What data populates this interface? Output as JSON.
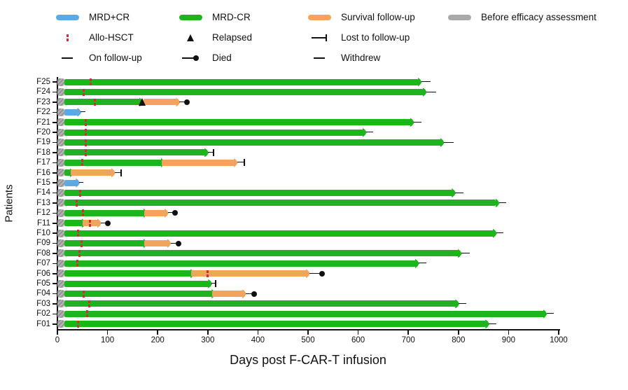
{
  "colors": {
    "mrd_pos_cr": "#5FA9E3",
    "mrd_neg_cr": "#1EB41E",
    "survival_follow_up": "#F2A45C",
    "before_efficacy_assessment": "#A9A9A9",
    "allo_hsct": "#D12E3C",
    "marker_black": "#111111"
  },
  "legend": {
    "items": [
      {
        "id": "mrd-pos-cr",
        "label": "MRD+CR",
        "marker": "bar-blue",
        "row": 1,
        "col": 1
      },
      {
        "id": "mrd-neg-cr",
        "label": "MRD-CR",
        "marker": "bar-green",
        "row": 1,
        "col": 2
      },
      {
        "id": "survival-follow-up",
        "label": "Survival follow-up",
        "marker": "bar-orange",
        "row": 1,
        "col": 3
      },
      {
        "id": "before-efficacy-assessment",
        "label": "Before efficacy assessment",
        "marker": "bar-gray",
        "row": 1,
        "col": 4
      },
      {
        "id": "allo-hsct",
        "label": "Allo-HSCT",
        "marker": "allo",
        "row": 2,
        "col": 1
      },
      {
        "id": "relapsed",
        "label": "Relapsed",
        "marker": "triangle",
        "row": 2,
        "col": 2
      },
      {
        "id": "lost-to-follow-up",
        "label": "Lost to follow-up",
        "marker": "lost",
        "row": 2,
        "col": 3
      },
      {
        "id": "on-follow-up",
        "label": "On follow-up",
        "marker": "line",
        "row": 3,
        "col": 1
      },
      {
        "id": "died",
        "label": "Died",
        "marker": "died",
        "row": 3,
        "col": 2
      },
      {
        "id": "withdrew",
        "label": "Withdrew",
        "marker": "line",
        "row": 3,
        "col": 3
      }
    ]
  },
  "chart_data": {
    "type": "swimmer",
    "xlabel": "Days post F-CAR-T infusion",
    "ylabel": "Patients",
    "xlim": [
      0,
      1000
    ],
    "x_ticks": [
      0,
      100,
      200,
      300,
      400,
      500,
      600,
      700,
      800,
      900,
      1000
    ],
    "grid": false,
    "segment_legend": {
      "before": "Before efficacy assessment",
      "blue": "MRD+CR",
      "green": "MRD-CR",
      "orange": "Survival follow-up"
    },
    "patients": [
      {
        "id": "F25",
        "segments": [
          {
            "type": "before",
            "start": 0,
            "end": 14
          },
          {
            "type": "green",
            "start": 14,
            "end": 720
          }
        ],
        "events": [
          {
            "type": "allo_hsct",
            "day": 67
          }
        ],
        "terminal": {
          "type": "on_follow_up",
          "day": 745
        }
      },
      {
        "id": "F24",
        "segments": [
          {
            "type": "before",
            "start": 0,
            "end": 14
          },
          {
            "type": "green",
            "start": 14,
            "end": 730
          }
        ],
        "events": [
          {
            "type": "allo_hsct",
            "day": 53
          }
        ],
        "terminal": {
          "type": "on_follow_up",
          "day": 755
        }
      },
      {
        "id": "F23",
        "segments": [
          {
            "type": "before",
            "start": 0,
            "end": 14
          },
          {
            "type": "green",
            "start": 14,
            "end": 165
          },
          {
            "type": "orange",
            "start": 172,
            "end": 238
          }
        ],
        "events": [
          {
            "type": "allo_hsct",
            "day": 75
          },
          {
            "type": "relapsed",
            "day": 169
          }
        ],
        "terminal": {
          "type": "died",
          "day": 258
        }
      },
      {
        "id": "F22",
        "segments": [
          {
            "type": "before",
            "start": 0,
            "end": 14
          },
          {
            "type": "blue",
            "start": 14,
            "end": 41
          }
        ],
        "events": [],
        "terminal": {
          "type": "withdrew",
          "day": 56
        }
      },
      {
        "id": "F21",
        "segments": [
          {
            "type": "before",
            "start": 0,
            "end": 14
          },
          {
            "type": "green",
            "start": 14,
            "end": 705
          }
        ],
        "events": [
          {
            "type": "allo_hsct",
            "day": 56
          }
        ],
        "terminal": {
          "type": "on_follow_up",
          "day": 726
        }
      },
      {
        "id": "F20",
        "segments": [
          {
            "type": "before",
            "start": 0,
            "end": 14
          },
          {
            "type": "green",
            "start": 14,
            "end": 610
          }
        ],
        "events": [
          {
            "type": "allo_hsct",
            "day": 56
          }
        ],
        "terminal": {
          "type": "on_follow_up",
          "day": 630
        }
      },
      {
        "id": "F19",
        "segments": [
          {
            "type": "before",
            "start": 0,
            "end": 14
          },
          {
            "type": "green",
            "start": 14,
            "end": 765
          }
        ],
        "events": [
          {
            "type": "allo_hsct",
            "day": 56
          }
        ],
        "terminal": {
          "type": "on_follow_up",
          "day": 790
        }
      },
      {
        "id": "F18",
        "segments": [
          {
            "type": "before",
            "start": 0,
            "end": 14
          },
          {
            "type": "green",
            "start": 14,
            "end": 295
          }
        ],
        "events": [
          {
            "type": "allo_hsct",
            "day": 56
          }
        ],
        "terminal": {
          "type": "lost_to_follow_up",
          "day": 312
        }
      },
      {
        "id": "F17",
        "segments": [
          {
            "type": "before",
            "start": 0,
            "end": 14
          },
          {
            "type": "green",
            "start": 14,
            "end": 208
          },
          {
            "type": "orange",
            "start": 208,
            "end": 353
          }
        ],
        "events": [
          {
            "type": "allo_hsct",
            "day": 50
          }
        ],
        "terminal": {
          "type": "lost_to_follow_up",
          "day": 373
        }
      },
      {
        "id": "F16",
        "segments": [
          {
            "type": "before",
            "start": 0,
            "end": 14
          },
          {
            "type": "green",
            "start": 14,
            "end": 26
          },
          {
            "type": "orange",
            "start": 26,
            "end": 109
          }
        ],
        "events": [],
        "terminal": {
          "type": "lost_to_follow_up",
          "day": 127
        }
      },
      {
        "id": "F15",
        "segments": [
          {
            "type": "before",
            "start": 0,
            "end": 14
          },
          {
            "type": "blue",
            "start": 14,
            "end": 38
          }
        ],
        "events": [],
        "terminal": {
          "type": "withdrew",
          "day": 52
        }
      },
      {
        "id": "F14",
        "segments": [
          {
            "type": "before",
            "start": 0,
            "end": 14
          },
          {
            "type": "green",
            "start": 14,
            "end": 788
          }
        ],
        "events": [
          {
            "type": "allo_hsct",
            "day": 45
          }
        ],
        "terminal": {
          "type": "on_follow_up",
          "day": 810
        }
      },
      {
        "id": "F13",
        "segments": [
          {
            "type": "before",
            "start": 0,
            "end": 14
          },
          {
            "type": "green",
            "start": 14,
            "end": 875
          }
        ],
        "events": [
          {
            "type": "allo_hsct",
            "day": 38
          }
        ],
        "terminal": {
          "type": "on_follow_up",
          "day": 895
        }
      },
      {
        "id": "F12",
        "segments": [
          {
            "type": "before",
            "start": 0,
            "end": 14
          },
          {
            "type": "green",
            "start": 14,
            "end": 173
          },
          {
            "type": "orange",
            "start": 173,
            "end": 215
          }
        ],
        "events": [
          {
            "type": "allo_hsct",
            "day": 51
          }
        ],
        "terminal": {
          "type": "died",
          "day": 234
        }
      },
      {
        "id": "F11",
        "segments": [
          {
            "type": "before",
            "start": 0,
            "end": 14
          },
          {
            "type": "green",
            "start": 14,
            "end": 50
          },
          {
            "type": "orange",
            "start": 50,
            "end": 81
          }
        ],
        "events": [
          {
            "type": "allo_hsct",
            "day": 65
          }
        ],
        "terminal": {
          "type": "died",
          "day": 101
        }
      },
      {
        "id": "F10",
        "segments": [
          {
            "type": "before",
            "start": 0,
            "end": 14
          },
          {
            "type": "green",
            "start": 14,
            "end": 870
          }
        ],
        "events": [
          {
            "type": "allo_hsct",
            "day": 41
          }
        ],
        "terminal": {
          "type": "on_follow_up",
          "day": 890
        }
      },
      {
        "id": "F09",
        "segments": [
          {
            "type": "before",
            "start": 0,
            "end": 14
          },
          {
            "type": "green",
            "start": 14,
            "end": 173
          },
          {
            "type": "orange",
            "start": 173,
            "end": 220
          }
        ],
        "events": [
          {
            "type": "allo_hsct",
            "day": 48
          }
        ],
        "terminal": {
          "type": "died",
          "day": 242
        }
      },
      {
        "id": "F08",
        "segments": [
          {
            "type": "before",
            "start": 0,
            "end": 14
          },
          {
            "type": "green",
            "start": 14,
            "end": 800
          }
        ],
        "events": [
          {
            "type": "allo_hsct",
            "day": 44
          }
        ],
        "terminal": {
          "type": "on_follow_up",
          "day": 822
        }
      },
      {
        "id": "F07",
        "segments": [
          {
            "type": "before",
            "start": 0,
            "end": 14
          },
          {
            "type": "green",
            "start": 14,
            "end": 715
          }
        ],
        "events": [
          {
            "type": "allo_hsct",
            "day": 40
          }
        ],
        "terminal": {
          "type": "on_follow_up",
          "day": 736
        }
      },
      {
        "id": "F06",
        "segments": [
          {
            "type": "before",
            "start": 0,
            "end": 14
          },
          {
            "type": "green",
            "start": 14,
            "end": 267
          },
          {
            "type": "orange",
            "start": 267,
            "end": 497
          }
        ],
        "events": [
          {
            "type": "allo_hsct",
            "day": 300
          }
        ],
        "terminal": {
          "type": "died",
          "day": 528
        }
      },
      {
        "id": "F05",
        "segments": [
          {
            "type": "before",
            "start": 0,
            "end": 14
          },
          {
            "type": "green",
            "start": 14,
            "end": 302
          }
        ],
        "events": [],
        "terminal": {
          "type": "lost_to_follow_up",
          "day": 316
        }
      },
      {
        "id": "F04",
        "segments": [
          {
            "type": "before",
            "start": 0,
            "end": 14
          },
          {
            "type": "green",
            "start": 14,
            "end": 309
          },
          {
            "type": "orange",
            "start": 309,
            "end": 370
          }
        ],
        "events": [
          {
            "type": "allo_hsct",
            "day": 53
          }
        ],
        "terminal": {
          "type": "died",
          "day": 392
        }
      },
      {
        "id": "F03",
        "segments": [
          {
            "type": "before",
            "start": 0,
            "end": 14
          },
          {
            "type": "green",
            "start": 14,
            "end": 795
          }
        ],
        "events": [
          {
            "type": "allo_hsct",
            "day": 64
          }
        ],
        "terminal": {
          "type": "on_follow_up",
          "day": 816
        }
      },
      {
        "id": "F02",
        "segments": [
          {
            "type": "before",
            "start": 0,
            "end": 14
          },
          {
            "type": "green",
            "start": 14,
            "end": 970
          }
        ],
        "events": [
          {
            "type": "allo_hsct",
            "day": 59
          }
        ],
        "terminal": {
          "type": "on_follow_up",
          "day": 990
        }
      },
      {
        "id": "F01",
        "segments": [
          {
            "type": "before",
            "start": 0,
            "end": 14
          },
          {
            "type": "green",
            "start": 14,
            "end": 855
          }
        ],
        "events": [
          {
            "type": "allo_hsct",
            "day": 41
          }
        ],
        "terminal": {
          "type": "on_follow_up",
          "day": 876
        }
      }
    ]
  }
}
